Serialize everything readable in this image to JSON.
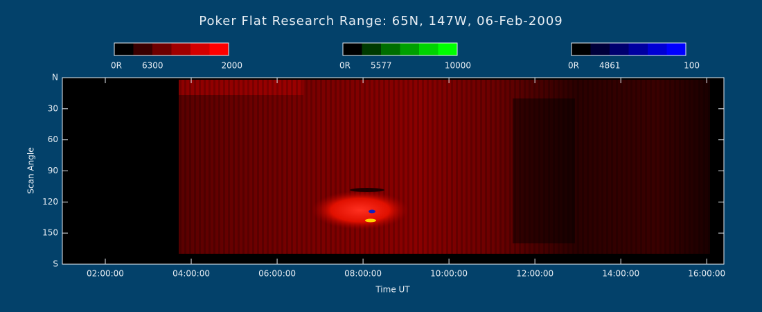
{
  "chart_data": {
    "type": "keogram",
    "title": "Poker Flat Research Range: 65N, 147W, 06-Feb-2009",
    "x_label": "Time UT",
    "y_label": "Scan Angle",
    "xlim": [
      1.0,
      16.4
    ],
    "xticks": [
      {
        "value": 2,
        "label": "02:00:00"
      },
      {
        "value": 4,
        "label": "04:00:00"
      },
      {
        "value": 6,
        "label": "06:00:00"
      },
      {
        "value": 8,
        "label": "08:00:00"
      },
      {
        "value": 10,
        "label": "10:00:00"
      },
      {
        "value": 12,
        "label": "12:00:00"
      },
      {
        "value": 14,
        "label": "14:00:00"
      },
      {
        "value": 16,
        "label": "16:00:00"
      }
    ],
    "ylim": [
      0,
      180
    ],
    "yticks": [
      {
        "value": 0,
        "label": "N"
      },
      30,
      60,
      90,
      120,
      150,
      {
        "value": 180,
        "label": "S"
      }
    ],
    "colorbars": [
      {
        "name": "6300",
        "min_label": "0R",
        "max": 2000,
        "colors": [
          "#000000",
          "#3a0000",
          "#6e0000",
          "#a00000",
          "#d40000",
          "#ff0000"
        ]
      },
      {
        "name": "5577",
        "min_label": "0R",
        "max": 10000,
        "colors": [
          "#000000",
          "#003a00",
          "#006e00",
          "#00a000",
          "#00d400",
          "#00ff00"
        ]
      },
      {
        "name": "4861",
        "min_label": "0R",
        "max": 100,
        "colors": [
          "#000000",
          "#00003a",
          "#00006e",
          "#0000a0",
          "#0000d4",
          "#0000ff"
        ]
      }
    ]
  }
}
